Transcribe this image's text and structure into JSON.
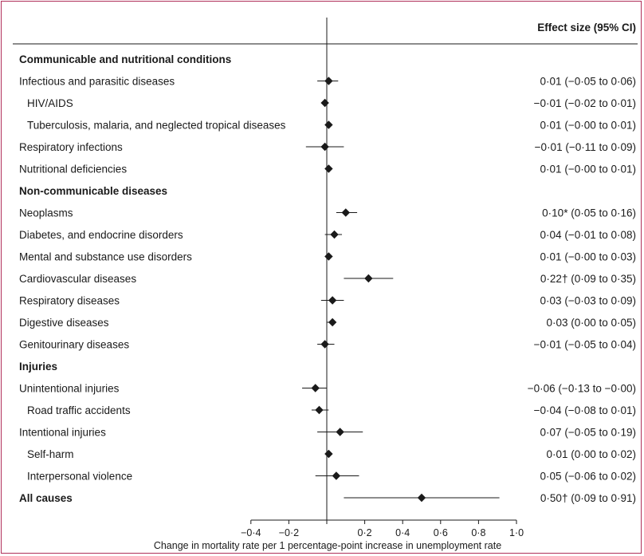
{
  "chart_data": {
    "type": "forest",
    "header": "Effect size (95% CI)",
    "xlabel": "Change in mortality rate per 1 percentage-point increase in unemployment rate",
    "xlim": [
      -0.4,
      1.0
    ],
    "xticks": [
      -0.4,
      -0.2,
      0,
      0.2,
      0.4,
      0.6,
      0.8,
      1.0
    ],
    "xtick_labels": [
      "−0·4",
      "−0·2",
      "",
      "0·2",
      "0·4",
      "0·6",
      "0·8",
      "1·0"
    ],
    "rows": [
      {
        "label": "Communicable and nutritional conditions",
        "kind": "section"
      },
      {
        "label": "Infectious and parasitic diseases",
        "kind": "item",
        "indent": 0,
        "est": 0.01,
        "lo": -0.05,
        "hi": 0.06,
        "text": "0·01 (−0·05 to 0·06)"
      },
      {
        "label": "HIV/AIDS",
        "kind": "item",
        "indent": 1,
        "est": -0.01,
        "lo": -0.02,
        "hi": 0.01,
        "text": "−0·01 (−0·02 to 0·01)"
      },
      {
        "label": "Tuberculosis, malaria, and neglected tropical diseases",
        "kind": "item",
        "indent": 1,
        "est": 0.01,
        "lo": -0.0,
        "hi": 0.01,
        "text": "0·01 (−0·00 to 0·01)"
      },
      {
        "label": "Respiratory infections",
        "kind": "item",
        "indent": 0,
        "est": -0.01,
        "lo": -0.11,
        "hi": 0.09,
        "text": "−0·01 (−0·11 to 0·09)"
      },
      {
        "label": "Nutritional deficiencies",
        "kind": "item",
        "indent": 0,
        "est": 0.01,
        "lo": -0.0,
        "hi": 0.01,
        "text": "0·01 (−0·00 to 0·01)"
      },
      {
        "label": "Non-communicable diseases",
        "kind": "section"
      },
      {
        "label": "Neoplasms",
        "kind": "item",
        "indent": 0,
        "est": 0.1,
        "lo": 0.05,
        "hi": 0.16,
        "text": "0·10* (0·05 to 0·16)"
      },
      {
        "label": "Diabetes, and endocrine disorders",
        "kind": "item",
        "indent": 0,
        "est": 0.04,
        "lo": -0.01,
        "hi": 0.08,
        "text": "0·04 (−0·01 to 0·08)"
      },
      {
        "label": "Mental and substance use disorders",
        "kind": "item",
        "indent": 0,
        "est": 0.01,
        "lo": -0.0,
        "hi": 0.03,
        "text": "0·01 (−0·00 to 0·03)"
      },
      {
        "label": "Cardiovascular diseases",
        "kind": "item",
        "indent": 0,
        "est": 0.22,
        "lo": 0.09,
        "hi": 0.35,
        "text": "0·22† (0·09 to 0·35)"
      },
      {
        "label": "Respiratory diseases",
        "kind": "item",
        "indent": 0,
        "est": 0.03,
        "lo": -0.03,
        "hi": 0.09,
        "text": "0·03 (−0·03 to 0·09)"
      },
      {
        "label": "Digestive diseases",
        "kind": "item",
        "indent": 0,
        "est": 0.03,
        "lo": 0.0,
        "hi": 0.05,
        "text": "0·03 (0·00 to 0·05)"
      },
      {
        "label": "Genitourinary diseases",
        "kind": "item",
        "indent": 0,
        "est": -0.01,
        "lo": -0.05,
        "hi": 0.04,
        "text": "−0·01 (−0·05 to 0·04)"
      },
      {
        "label": "Injuries",
        "kind": "section"
      },
      {
        "label": "Unintentional injuries",
        "kind": "item",
        "indent": 0,
        "est": -0.06,
        "lo": -0.13,
        "hi": -0.0,
        "text": "−0·06 (−0·13 to −0·00)"
      },
      {
        "label": "Road traffic accidents",
        "kind": "item",
        "indent": 1,
        "est": -0.04,
        "lo": -0.08,
        "hi": 0.01,
        "text": "−0·04 (−0·08 to 0·01)"
      },
      {
        "label": "Intentional injuries",
        "kind": "item",
        "indent": 0,
        "est": 0.07,
        "lo": -0.05,
        "hi": 0.19,
        "text": "0·07 (−0·05 to 0·19)"
      },
      {
        "label": "Self-harm",
        "kind": "item",
        "indent": 1,
        "est": 0.01,
        "lo": 0.0,
        "hi": 0.02,
        "text": "0·01 (0·00 to 0·02)"
      },
      {
        "label": "Interpersonal violence",
        "kind": "item",
        "indent": 1,
        "est": 0.05,
        "lo": -0.06,
        "hi": 0.17,
        "text": "0·05 (−0·06 to 0·02)"
      },
      {
        "label": "All causes",
        "kind": "total",
        "indent": 0,
        "est": 0.5,
        "lo": 0.09,
        "hi": 0.91,
        "text": "0·50† (0·09 to 0·91)"
      }
    ]
  }
}
